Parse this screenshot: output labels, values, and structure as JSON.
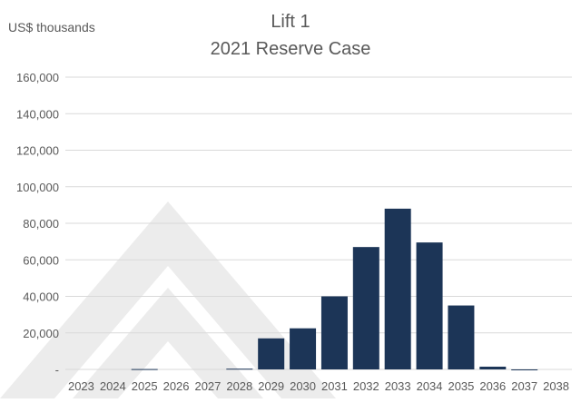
{
  "header": {
    "unit_label": "US$ thousands"
  },
  "chart_data": {
    "type": "bar",
    "title": "Lift 1",
    "subtitle": "2021 Reserve Case",
    "ylabel": "US$ thousands",
    "xlabel": "",
    "categories": [
      "2023",
      "2024",
      "2025",
      "2026",
      "2027",
      "2028",
      "2029",
      "2030",
      "2031",
      "2032",
      "2033",
      "2034",
      "2035",
      "2036",
      "2037",
      "2038"
    ],
    "values": [
      0,
      0,
      200,
      0,
      0,
      400,
      17000,
      22500,
      40000,
      67000,
      88000,
      69500,
      35000,
      1500,
      -400,
      0
    ],
    "ylim": [
      0,
      160000
    ],
    "yticks": [
      0,
      20000,
      40000,
      60000,
      80000,
      100000,
      120000,
      140000,
      160000
    ],
    "ytick_labels": [
      "-",
      "20,000",
      "40,000",
      "60,000",
      "80,000",
      "100,000",
      "120,000",
      "140,000",
      "160,000"
    ],
    "grid": true,
    "legend": "none",
    "colors": {
      "bar": "#1c3557",
      "grid": "#d9d9d9",
      "text": "#595959",
      "watermark": "#ececec"
    }
  }
}
